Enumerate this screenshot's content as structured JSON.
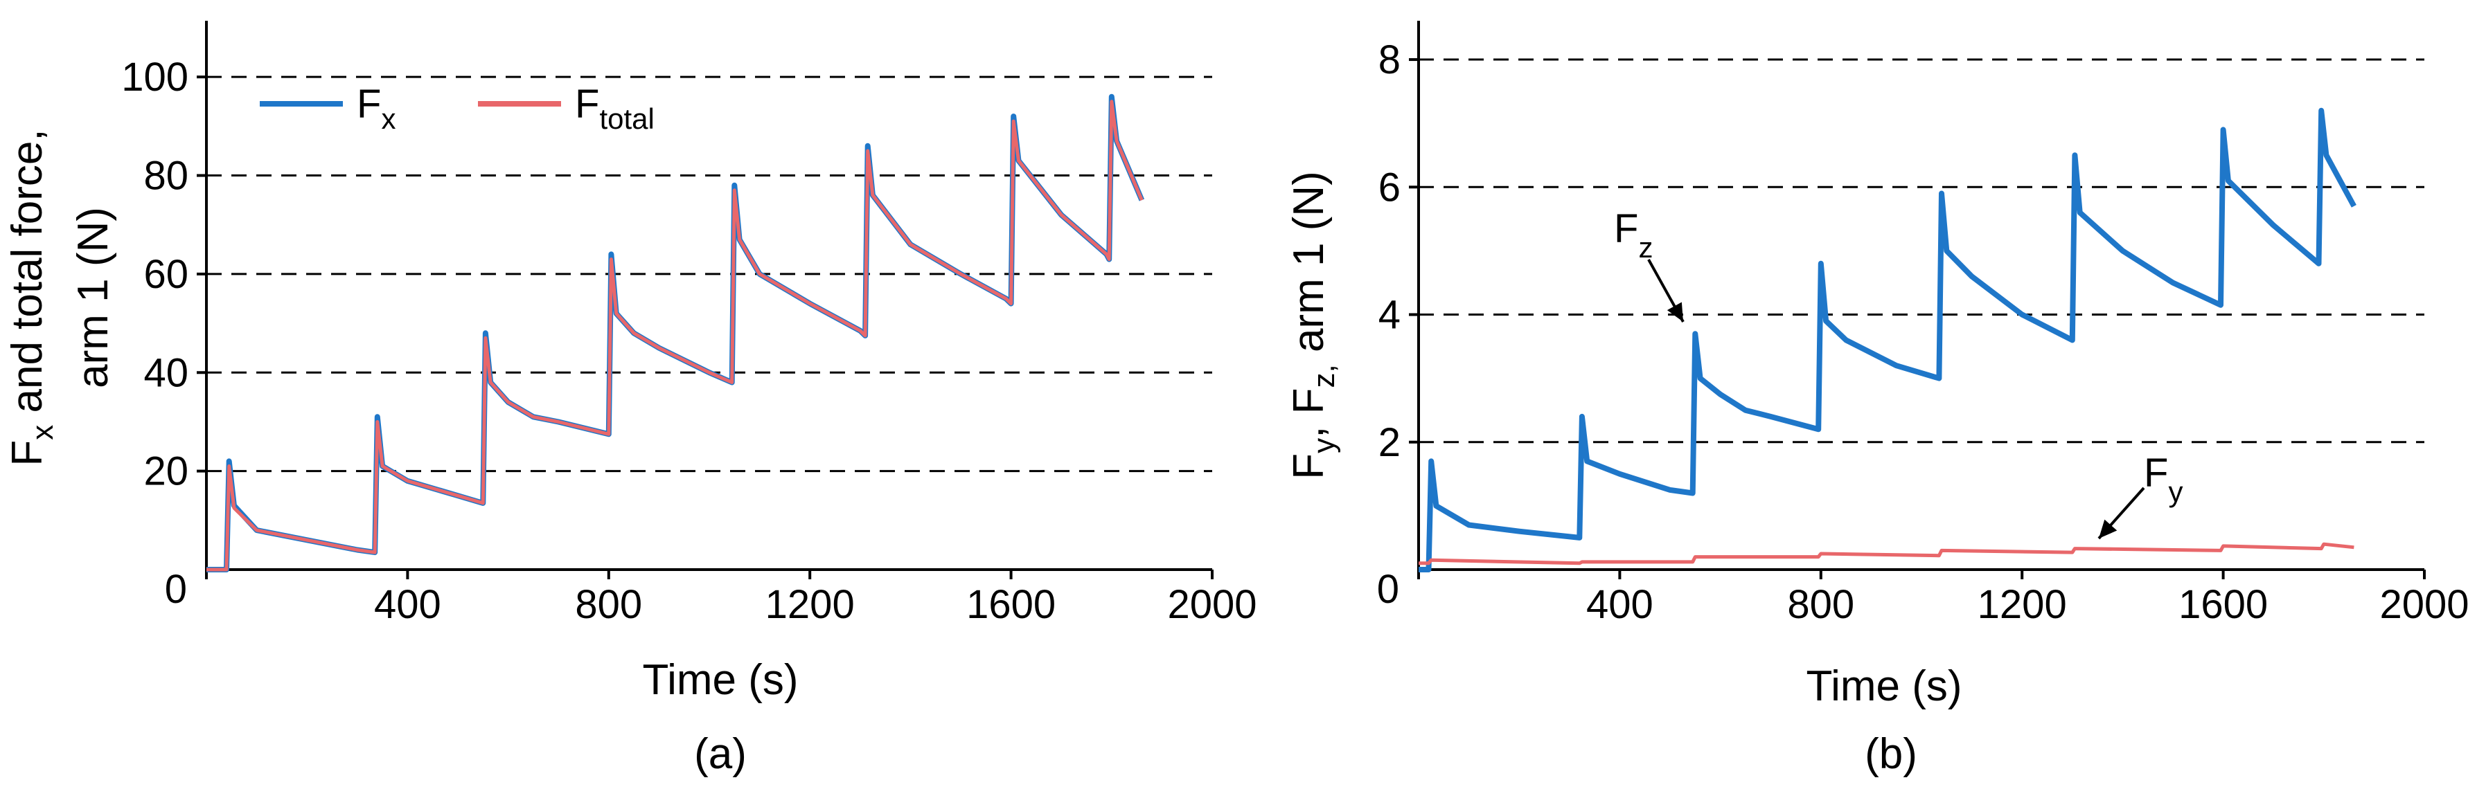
{
  "chart_data": [
    {
      "type": "line",
      "panel_label": "(a)",
      "xlabel": "Time (s)",
      "ylabel_main": "F",
      "ylabel_main_sub": "x",
      "ylabel_main_rest": " and total force,",
      "ylabel_line2": "arm 1 (N)",
      "xlim": [
        0,
        2000
      ],
      "ylim": [
        0,
        110
      ],
      "xticks": [
        0,
        400,
        800,
        1200,
        1600,
        2000
      ],
      "yticks": [
        20,
        40,
        60,
        80,
        100
      ],
      "y_zero_label": "0",
      "grid": "horizontal-dashed",
      "legend": {
        "placement": "top-left",
        "entries": [
          {
            "label": "F",
            "sub": "x",
            "color": "#1f77c9"
          },
          {
            "label": "F",
            "sub": "total",
            "color": "#e8676a"
          }
        ]
      },
      "series": [
        {
          "name": "Fx",
          "color": "#1f77c9",
          "points": [
            [
              0,
              0
            ],
            [
              40,
              0
            ],
            [
              45,
              22
            ],
            [
              55,
              13
            ],
            [
              100,
              8
            ],
            [
              200,
              6
            ],
            [
              300,
              4
            ],
            [
              335,
              3.5
            ],
            [
              340,
              31
            ],
            [
              350,
              21
            ],
            [
              400,
              18
            ],
            [
              500,
              15
            ],
            [
              550,
              13.5
            ],
            [
              555,
              48
            ],
            [
              565,
              38
            ],
            [
              600,
              34
            ],
            [
              650,
              31
            ],
            [
              700,
              30
            ],
            [
              800,
              27.5
            ],
            [
              805,
              64
            ],
            [
              815,
              52
            ],
            [
              850,
              48
            ],
            [
              900,
              45
            ],
            [
              1000,
              40
            ],
            [
              1045,
              38
            ],
            [
              1050,
              78
            ],
            [
              1060,
              67
            ],
            [
              1100,
              60
            ],
            [
              1200,
              54
            ],
            [
              1300,
              48.5
            ],
            [
              1310,
              47.5
            ],
            [
              1315,
              86
            ],
            [
              1325,
              76
            ],
            [
              1400,
              66
            ],
            [
              1500,
              60
            ],
            [
              1590,
              55
            ],
            [
              1600,
              54
            ],
            [
              1605,
              92
            ],
            [
              1615,
              83
            ],
            [
              1700,
              72
            ],
            [
              1790,
              64
            ],
            [
              1795,
              63
            ],
            [
              1800,
              96
            ],
            [
              1810,
              87
            ],
            [
              1860,
              75
            ]
          ]
        },
        {
          "name": "Ftotal",
          "color": "#e8676a",
          "points": [
            [
              0,
              0
            ],
            [
              40,
              0
            ],
            [
              45,
              21
            ],
            [
              55,
              12.5
            ],
            [
              100,
              8
            ],
            [
              200,
              6
            ],
            [
              300,
              4
            ],
            [
              335,
              3.5
            ],
            [
              340,
              30
            ],
            [
              350,
              21
            ],
            [
              400,
              18
            ],
            [
              500,
              15
            ],
            [
              550,
              13.5
            ],
            [
              555,
              47
            ],
            [
              565,
              38
            ],
            [
              600,
              34
            ],
            [
              650,
              31
            ],
            [
              700,
              30
            ],
            [
              800,
              27.5
            ],
            [
              805,
              63
            ],
            [
              815,
              52
            ],
            [
              850,
              48
            ],
            [
              900,
              45
            ],
            [
              1000,
              40
            ],
            [
              1045,
              38
            ],
            [
              1050,
              77
            ],
            [
              1060,
              67
            ],
            [
              1100,
              60
            ],
            [
              1200,
              54
            ],
            [
              1300,
              48.5
            ],
            [
              1310,
              47.5
            ],
            [
              1315,
              85
            ],
            [
              1325,
              76
            ],
            [
              1400,
              66
            ],
            [
              1500,
              60
            ],
            [
              1590,
              55
            ],
            [
              1600,
              54
            ],
            [
              1605,
              91
            ],
            [
              1615,
              83
            ],
            [
              1700,
              72
            ],
            [
              1790,
              64
            ],
            [
              1795,
              63
            ],
            [
              1800,
              95
            ],
            [
              1810,
              87
            ],
            [
              1860,
              75
            ]
          ]
        }
      ]
    },
    {
      "type": "line",
      "panel_label": "(b)",
      "xlabel": "Time (s)",
      "ylabel_main": "F",
      "ylabel_main_sub": "y",
      "ylabel_main_rest": ", F",
      "ylabel_main_sub2": "z,",
      "ylabel_line2": " arm 1 (N)",
      "xlim": [
        0,
        2000
      ],
      "ylim": [
        0,
        8.5
      ],
      "xticks": [
        0,
        400,
        800,
        1200,
        1600,
        2000
      ],
      "yticks": [
        2,
        4,
        6,
        8
      ],
      "y_zero_label": "0",
      "grid": "horizontal-dashed",
      "annotations": [
        {
          "label": "F",
          "sub": "z",
          "x": 540,
          "y": 4.3
        },
        {
          "label": "F",
          "sub": "y",
          "x": 1390,
          "y": 0.8
        }
      ],
      "series": [
        {
          "name": "Fz",
          "color": "#1f77c9",
          "points": [
            [
              0,
              0
            ],
            [
              20,
              0
            ],
            [
              25,
              1.7
            ],
            [
              35,
              1.0
            ],
            [
              100,
              0.7
            ],
            [
              200,
              0.6
            ],
            [
              320,
              0.5
            ],
            [
              325,
              2.4
            ],
            [
              335,
              1.7
            ],
            [
              400,
              1.5
            ],
            [
              500,
              1.25
            ],
            [
              545,
              1.2
            ],
            [
              550,
              3.7
            ],
            [
              560,
              3.0
            ],
            [
              600,
              2.75
            ],
            [
              650,
              2.5
            ],
            [
              700,
              2.4
            ],
            [
              795,
              2.2
            ],
            [
              800,
              4.8
            ],
            [
              810,
              3.9
            ],
            [
              850,
              3.6
            ],
            [
              950,
              3.2
            ],
            [
              1035,
              3.0
            ],
            [
              1040,
              5.9
            ],
            [
              1050,
              5.0
            ],
            [
              1100,
              4.6
            ],
            [
              1200,
              4.0
            ],
            [
              1300,
              3.6
            ],
            [
              1305,
              6.5
            ],
            [
              1315,
              5.6
            ],
            [
              1400,
              5.0
            ],
            [
              1500,
              4.5
            ],
            [
              1595,
              4.15
            ],
            [
              1600,
              6.9
            ],
            [
              1610,
              6.1
            ],
            [
              1700,
              5.4
            ],
            [
              1790,
              4.8
            ],
            [
              1795,
              7.2
            ],
            [
              1805,
              6.5
            ],
            [
              1860,
              5.7
            ]
          ]
        },
        {
          "name": "Fy",
          "color": "#e8676a",
          "points": [
            [
              0,
              0.1
            ],
            [
              20,
              0.1
            ],
            [
              25,
              0.15
            ],
            [
              320,
              0.1
            ],
            [
              325,
              0.12
            ],
            [
              545,
              0.12
            ],
            [
              550,
              0.2
            ],
            [
              795,
              0.2
            ],
            [
              800,
              0.25
            ],
            [
              1035,
              0.22
            ],
            [
              1040,
              0.3
            ],
            [
              1300,
              0.27
            ],
            [
              1305,
              0.33
            ],
            [
              1595,
              0.3
            ],
            [
              1600,
              0.37
            ],
            [
              1795,
              0.33
            ],
            [
              1800,
              0.4
            ],
            [
              1860,
              0.35
            ]
          ]
        }
      ]
    }
  ]
}
